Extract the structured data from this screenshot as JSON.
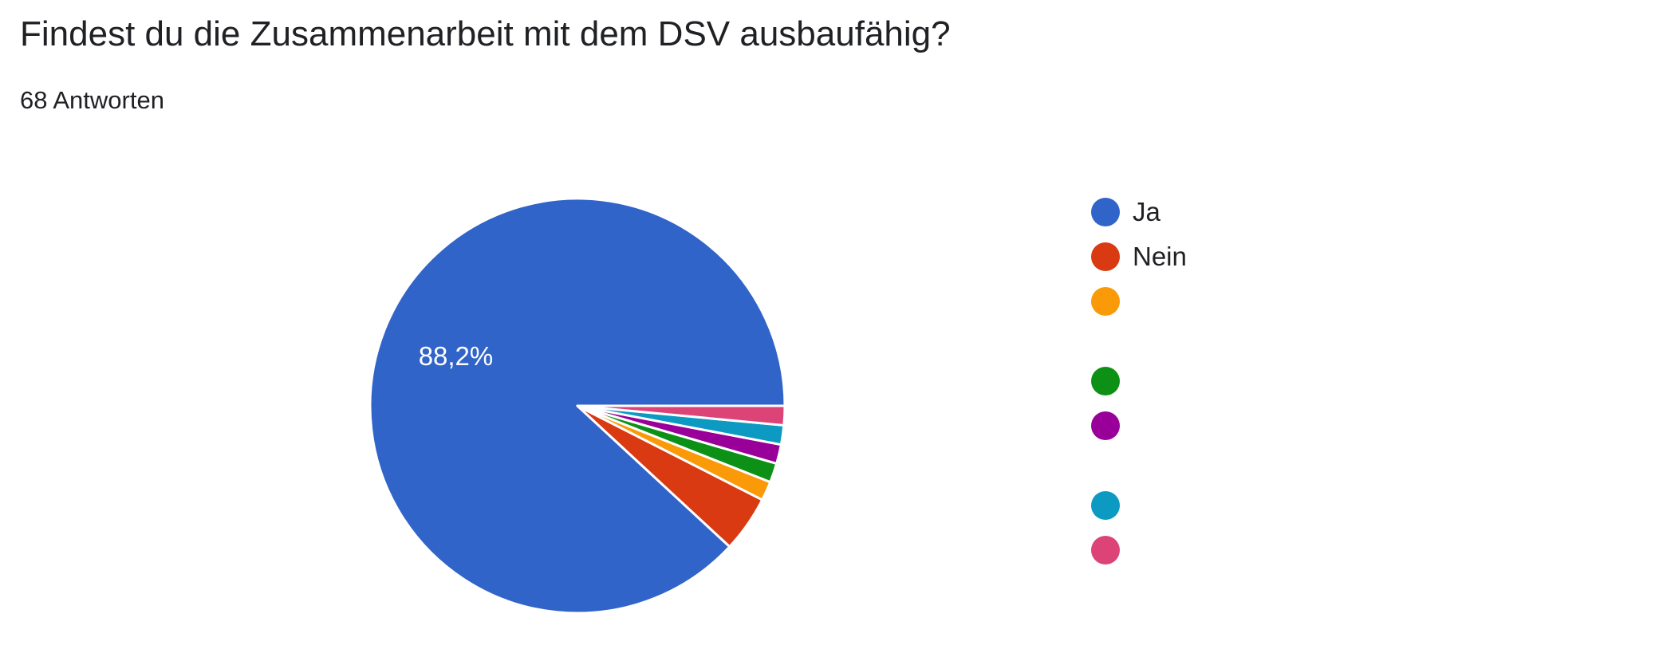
{
  "chart_data": {
    "type": "pie",
    "title": "Findest du die Zusammenarbeit mit dem DSV ausbaufähig?",
    "subtitle": "68 Antworten",
    "total_responses": 68,
    "slices": [
      {
        "label": "Ja",
        "percent": 88.2,
        "color": "#3164c9",
        "data_label": "88,2%"
      },
      {
        "label": "Nein",
        "percent": 4.4,
        "color": "#d93a12",
        "data_label": ""
      },
      {
        "label": "",
        "percent": 1.5,
        "color": "#fa9a09",
        "data_label": ""
      },
      {
        "label": "",
        "percent": 1.5,
        "color": "#0c9116",
        "data_label": ""
      },
      {
        "label": "",
        "percent": 1.5,
        "color": "#990099",
        "data_label": ""
      },
      {
        "label": "",
        "percent": 1.5,
        "color": "#0c9ac2",
        "data_label": ""
      },
      {
        "label": "",
        "percent": 1.5,
        "color": "#dc4477",
        "data_label": ""
      }
    ],
    "legend_position": "right"
  }
}
